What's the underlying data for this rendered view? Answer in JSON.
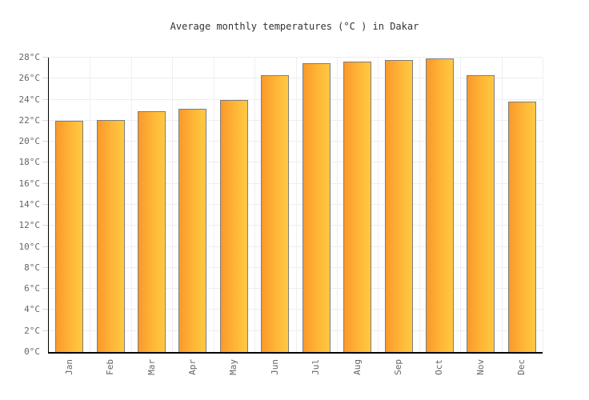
{
  "title": "Average monthly temperatures (°C ) in Dakar",
  "chart_data": {
    "type": "bar",
    "title": "Average monthly temperatures (°C ) in Dakar",
    "categories": [
      "Jan",
      "Feb",
      "Mar",
      "Apr",
      "May",
      "Jun",
      "Jul",
      "Aug",
      "Sep",
      "Oct",
      "Nov",
      "Dec"
    ],
    "values": [
      22,
      22.1,
      22.9,
      23.1,
      24,
      26.3,
      27.5,
      27.6,
      27.8,
      27.9,
      26.3,
      23.8
    ],
    "xlabel": "",
    "ylabel": "",
    "ylim": [
      0,
      28
    ],
    "y_tick_step": 2,
    "y_tick_suffix": "°C",
    "grid": true,
    "legend": "none",
    "colors": {
      "bar_gradient_left": "#F9992B",
      "bar_gradient_right": "#FFC943",
      "bar_border": "#7d7d7d",
      "gridline": "#ededed",
      "axis_line": "#000000",
      "axis_label": "#666666",
      "title_text": "#333333",
      "background": "#ffffff"
    }
  }
}
